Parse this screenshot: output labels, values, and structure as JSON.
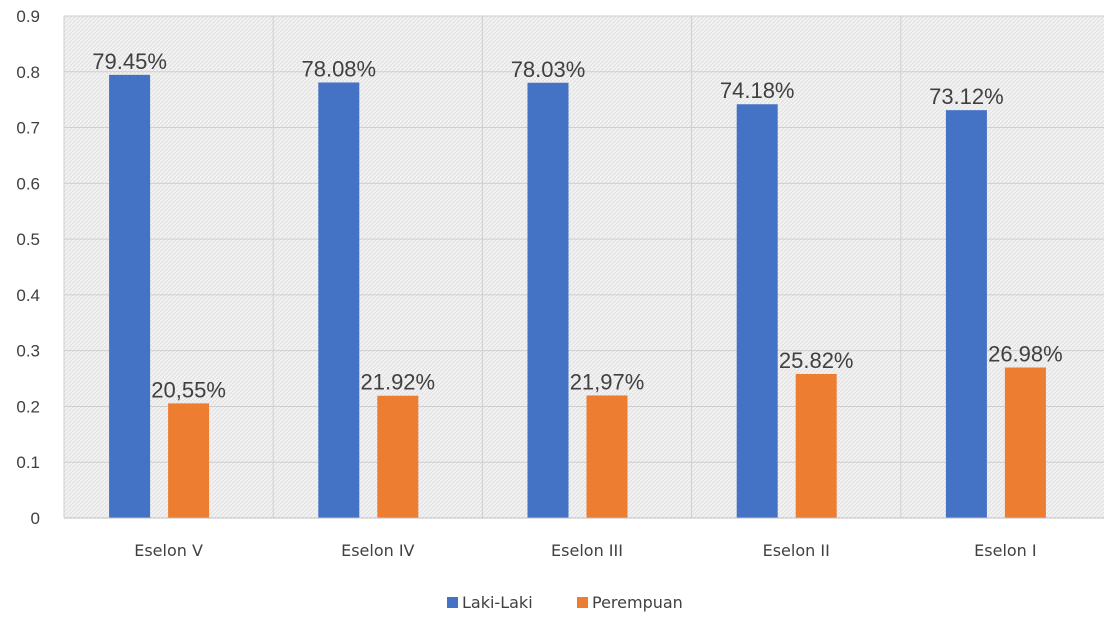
{
  "chart_data": {
    "type": "bar",
    "categories": [
      "Eselon V",
      "Eselon IV",
      "Eselon III",
      "Eselon II",
      "Eselon I"
    ],
    "series": [
      {
        "name": "Laki-Laki",
        "color": "#4472c4",
        "values": [
          0.7945,
          0.7808,
          0.7803,
          0.7418,
          0.7312
        ],
        "data_labels": [
          "79.45%",
          "78.08%",
          "78.03%",
          "74.18%",
          "73.12%"
        ]
      },
      {
        "name": "Perempuan",
        "color": "#ed7d31",
        "values": [
          0.2055,
          0.2192,
          0.2197,
          0.2582,
          0.2698
        ],
        "data_labels": [
          "20,55%",
          "21.92%",
          "21,97%",
          "25.82%",
          "26.98%"
        ]
      }
    ],
    "ylim": [
      0,
      0.9
    ],
    "yticks": [
      "0",
      "0.1",
      "0.2",
      "0.3",
      "0.4",
      "0.5",
      "0.6",
      "0.7",
      "0.8",
      "0.9"
    ],
    "grid": true,
    "legend": "bottom",
    "background": "hatched light gray"
  }
}
